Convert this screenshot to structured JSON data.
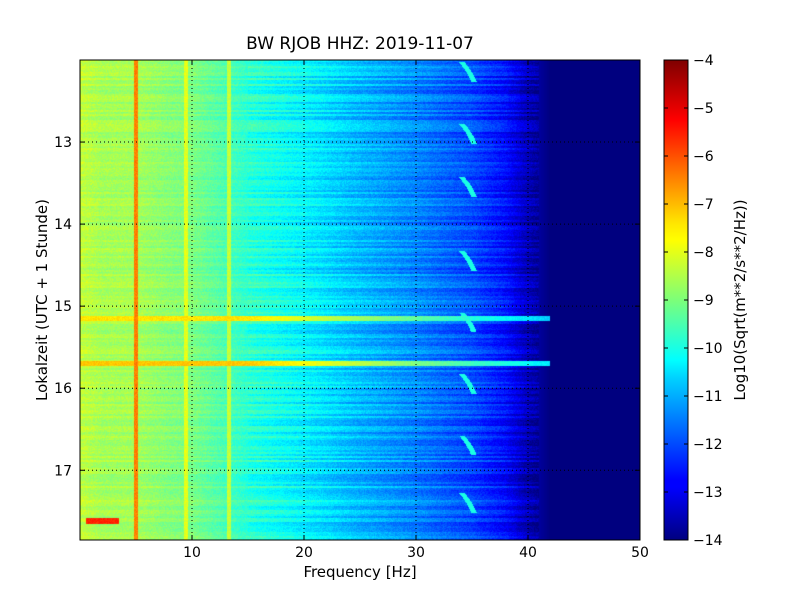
{
  "chart_data": {
    "type": "heatmap",
    "title": "BW RJOB HHZ: 2019-11-07",
    "xlabel": "Frequency [Hz]",
    "ylabel": "Lokalzeit (UTC + 1 Stunde)",
    "xlim": [
      0,
      50
    ],
    "ylim": [
      17.85,
      12.0
    ],
    "y_inverted": true,
    "x_ticks": [
      10,
      20,
      30,
      40,
      50
    ],
    "x_tick_labels": [
      "10",
      "20",
      "30",
      "40",
      "50"
    ],
    "y_ticks": [
      13,
      14,
      15,
      16,
      17
    ],
    "y_tick_labels": [
      "13",
      "14",
      "15",
      "16",
      "17"
    ],
    "grid": true,
    "colorbar": {
      "label": "Log10(Sqrt(m**2/s**2/Hz))",
      "range": [
        -14,
        -4
      ],
      "ticks": [
        -4,
        -5,
        -6,
        -7,
        -8,
        -9,
        -10,
        -11,
        -12,
        -13,
        -14
      ],
      "tick_labels": [
        "−4",
        "−5",
        "−6",
        "−7",
        "−8",
        "−9",
        "−10",
        "−11",
        "−12",
        "−13",
        "−14"
      ],
      "colormap": "jet"
    },
    "spectrum_profile": {
      "frequency_hz": [
        0,
        2,
        5,
        8,
        10,
        15,
        20,
        25,
        30,
        35,
        38,
        40,
        42,
        50
      ],
      "log10_amplitude": [
        -8.3,
        -8.6,
        -8.6,
        -8.9,
        -9.0,
        -9.8,
        -10.3,
        -10.9,
        -11.4,
        -12.0,
        -12.6,
        -13.4,
        -14.0,
        -14.0
      ]
    },
    "features": [
      {
        "type": "vertical_line",
        "frequency_hz": 5.0,
        "level": -6.5
      },
      {
        "type": "vertical_line",
        "frequency_hz": 9.5,
        "level": -8.0
      },
      {
        "type": "vertical_line",
        "frequency_hz": 13.3,
        "level": -8.3
      },
      {
        "type": "horizontal_band",
        "time": 15.15,
        "freq_range": [
          0,
          42
        ],
        "level_min": -7.5
      },
      {
        "type": "horizontal_band",
        "time": 15.7,
        "freq_range": [
          0,
          42
        ],
        "level_min": -7.2
      },
      {
        "type": "horizontal_band",
        "time": 17.62,
        "freq_range": [
          0.5,
          3.5
        ],
        "level_min": -5.6
      },
      {
        "type": "hook",
        "frequency_hz": 34.5,
        "times": [
          12.15,
          12.9,
          13.55,
          14.45,
          15.2,
          15.95,
          16.7,
          17.4
        ],
        "level": -10.0
      }
    ]
  }
}
